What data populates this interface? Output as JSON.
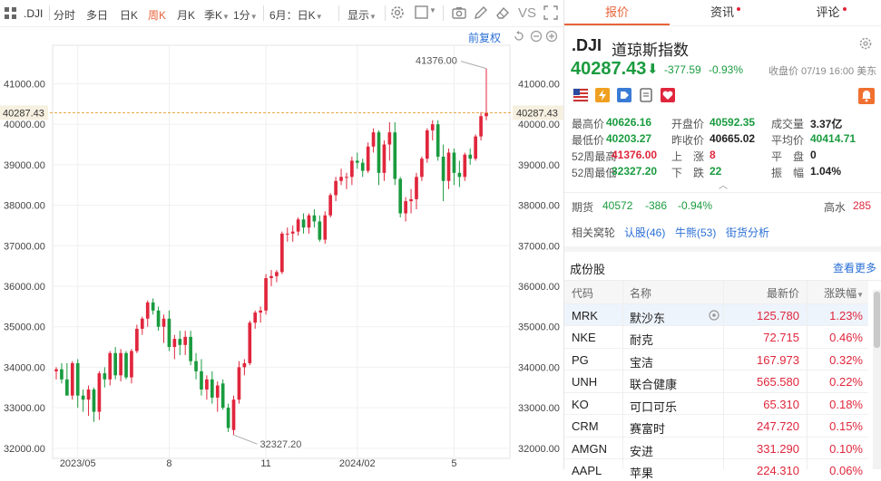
{
  "toolbar": {
    "symbol": ".DJI",
    "periods": [
      "分时",
      "多日",
      "日K",
      "周K",
      "月K",
      "季K",
      "1分"
    ],
    "active_period": "周K",
    "adjust": "6月：日K",
    "display": "显示",
    "vs": "VS"
  },
  "chart": {
    "adjust_mode": "前复权",
    "current_price_label": "40287.43",
    "high_label": "41376.00",
    "low_label": "32327.20",
    "y_ticks": [
      "41000.00",
      "40000.00",
      "39000.00",
      "38000.00",
      "37000.00",
      "36000.00",
      "35000.00",
      "34000.00",
      "33000.00",
      "32000.00"
    ],
    "x_ticks": [
      "2023/05",
      "8",
      "11",
      "2024/02",
      "5"
    ],
    "colors": {
      "up": "#e0263c",
      "down": "#1a9b3f",
      "price_line": "#e8a23a"
    }
  },
  "chart_data": {
    "type": "candlestick",
    "ylim": [
      31750,
      41950
    ],
    "current_price": 40287.43,
    "candles": [
      [
        33900,
        34000,
        33700,
        33950
      ],
      [
        33950,
        34100,
        33600,
        33700
      ],
      [
        33700,
        34100,
        33400,
        33300
      ],
      [
        33300,
        34150,
        33200,
        34100
      ],
      [
        34100,
        34200,
        33000,
        33300
      ],
      [
        33300,
        33450,
        32900,
        33200
      ],
      [
        33200,
        33550,
        32800,
        33450
      ],
      [
        33450,
        33500,
        32650,
        32900
      ],
      [
        32900,
        33900,
        32700,
        33850
      ],
      [
        33850,
        34000,
        33500,
        33700
      ],
      [
        33700,
        34400,
        33550,
        34350
      ],
      [
        34350,
        34500,
        33700,
        33800
      ],
      [
        33800,
        34450,
        33650,
        34350
      ],
      [
        34350,
        34400,
        33700,
        33750
      ],
      [
        33750,
        34450,
        33600,
        34400
      ],
      [
        34400,
        35050,
        34350,
        34950
      ],
      [
        34950,
        35250,
        34800,
        35200
      ],
      [
        35200,
        35650,
        35000,
        35600
      ],
      [
        35600,
        35700,
        35300,
        35400
      ],
      [
        35400,
        35500,
        34900,
        35000
      ],
      [
        35000,
        35300,
        34600,
        35200
      ],
      [
        35200,
        35400,
        34400,
        34500
      ],
      [
        34500,
        34800,
        34200,
        34700
      ],
      [
        34700,
        34900,
        34300,
        34550
      ],
      [
        34550,
        34900,
        34300,
        34750
      ],
      [
        34750,
        34900,
        34050,
        34150
      ],
      [
        34150,
        34350,
        33700,
        33900
      ],
      [
        33900,
        34200,
        33300,
        33450
      ],
      [
        33450,
        33800,
        33200,
        33700
      ],
      [
        33700,
        33900,
        33100,
        33250
      ],
      [
        33250,
        33650,
        32900,
        33550
      ],
      [
        33600,
        33700,
        32950,
        33000
      ],
      [
        33000,
        33100,
        32400,
        32500
      ],
      [
        32450,
        33300,
        32327,
        33200
      ],
      [
        33200,
        34150,
        33100,
        34000
      ],
      [
        34000,
        34200,
        33800,
        34100
      ],
      [
        34100,
        35150,
        34050,
        35100
      ],
      [
        35100,
        35400,
        34950,
        35350
      ],
      [
        35350,
        35500,
        35100,
        35400
      ],
      [
        35400,
        36300,
        35300,
        36200
      ],
      [
        36200,
        36400,
        36000,
        36250
      ],
      [
        36250,
        36400,
        36100,
        36350
      ],
      [
        36350,
        37350,
        36300,
        37300
      ],
      [
        37300,
        37450,
        37100,
        37300
      ],
      [
        37300,
        37500,
        37100,
        37350
      ],
      [
        37350,
        37700,
        37250,
        37650
      ],
      [
        37650,
        37800,
        37300,
        37450
      ],
      [
        37450,
        37800,
        37300,
        37750
      ],
      [
        37750,
        37900,
        37450,
        37600
      ],
      [
        37600,
        37750,
        37100,
        37150
      ],
      [
        37150,
        37850,
        37050,
        37750
      ],
      [
        37750,
        38300,
        37700,
        38250
      ],
      [
        38250,
        38700,
        38100,
        38600
      ],
      [
        38600,
        38900,
        38500,
        38700
      ],
      [
        38700,
        38800,
        38400,
        38700
      ],
      [
        38700,
        39200,
        38500,
        39100
      ],
      [
        39100,
        39300,
        38900,
        39050
      ],
      [
        39050,
        39150,
        38700,
        38850
      ],
      [
        38850,
        39550,
        38800,
        39450
      ],
      [
        39450,
        39900,
        39300,
        39800
      ],
      [
        39800,
        39850,
        38500,
        38800
      ],
      [
        38800,
        39600,
        38600,
        39500
      ],
      [
        39500,
        40050,
        39100,
        39800
      ],
      [
        39800,
        40050,
        38500,
        38650
      ],
      [
        38650,
        38700,
        37700,
        37800
      ],
      [
        37800,
        38200,
        37600,
        38100
      ],
      [
        38100,
        38400,
        37800,
        38150
      ],
      [
        38150,
        38800,
        37900,
        38700
      ],
      [
        38700,
        39200,
        38600,
        39150
      ],
      [
        39150,
        39900,
        39050,
        39850
      ],
      [
        39850,
        40100,
        39600,
        40000
      ],
      [
        40000,
        40100,
        39100,
        39200
      ],
      [
        39200,
        39500,
        38100,
        38600
      ],
      [
        38600,
        39400,
        38400,
        39300
      ],
      [
        39300,
        39400,
        38500,
        38800
      ],
      [
        38800,
        39100,
        38450,
        38700
      ],
      [
        38700,
        39300,
        38600,
        39250
      ],
      [
        39250,
        39400,
        39000,
        39150
      ],
      [
        39150,
        39750,
        39100,
        39700
      ],
      [
        39700,
        40300,
        39600,
        40200
      ],
      [
        40200,
        41376,
        40100,
        40287.43
      ]
    ]
  },
  "header": {
    "tabs": [
      "报价",
      "资讯",
      "评论"
    ],
    "active_tab": "报价",
    "symbol": ".DJI",
    "name": "道琼斯指数",
    "price": "40287.43",
    "arrow": "⬇",
    "change": "-377.59",
    "change_pct": "-0.93%",
    "close_time": "收盘价 07/19 16:00 美东"
  },
  "stats": [
    [
      "最高价",
      "40626.16",
      "开盘价",
      "40592.35",
      "成交量",
      "3.37亿"
    ],
    [
      "最低价",
      "40203.27",
      "昨收价",
      "40665.02",
      "平均价",
      "40414.71"
    ],
    [
      "52周最高",
      "41376.00",
      "上　涨",
      "8",
      "平　盘",
      "0"
    ],
    [
      "52周最低",
      "32327.20",
      "下　跌",
      "22",
      "振　幅",
      "1.04%"
    ]
  ],
  "futures": {
    "label": "期货",
    "price": "40572",
    "change": "-386",
    "pct": "-0.94%",
    "tide_label": "高水",
    "tide": "285"
  },
  "related": {
    "label": "相关窝轮",
    "links": [
      "认股(46)",
      "牛熊(53)",
      "街货分析"
    ]
  },
  "constituents": {
    "title": "成份股",
    "more": "查看更多",
    "columns": [
      "代码",
      "名称",
      "最新价",
      "涨跌幅"
    ],
    "rows": [
      [
        "MRK",
        "默沙东",
        "125.780",
        "1.23%"
      ],
      [
        "NKE",
        "耐克",
        "72.715",
        "0.46%"
      ],
      [
        "PG",
        "宝洁",
        "167.973",
        "0.32%"
      ],
      [
        "UNH",
        "联合健康",
        "565.580",
        "0.22%"
      ],
      [
        "KO",
        "可口可乐",
        "65.310",
        "0.18%"
      ],
      [
        "CRM",
        "赛富时",
        "247.720",
        "0.15%"
      ],
      [
        "AMGN",
        "安进",
        "331.290",
        "0.10%"
      ],
      [
        "AAPL",
        "苹果",
        "224.310",
        "0.06%"
      ]
    ]
  }
}
